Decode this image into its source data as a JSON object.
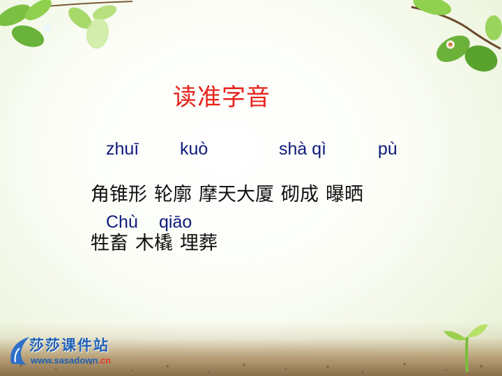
{
  "title": "读准字音",
  "pinyin": [
    "zhuī",
    "kuò",
    "shà qì",
    "pù",
    "Chù",
    "qiāo"
  ],
  "words_line1": [
    "角锥形",
    "轮廓",
    "摩天大厦",
    "砌成",
    "曝晒"
  ],
  "words_line2": [
    "牲畜",
    "木橇",
    "埋葬"
  ],
  "logo": {
    "name": "莎莎课件站",
    "url_prefix": "www.",
    "url_domain": "sasadown",
    "url_tld": ".cn"
  },
  "colors": {
    "title": "#e8211b",
    "pinyin": "#0d1a7a",
    "logo": "#1e5fb6"
  }
}
